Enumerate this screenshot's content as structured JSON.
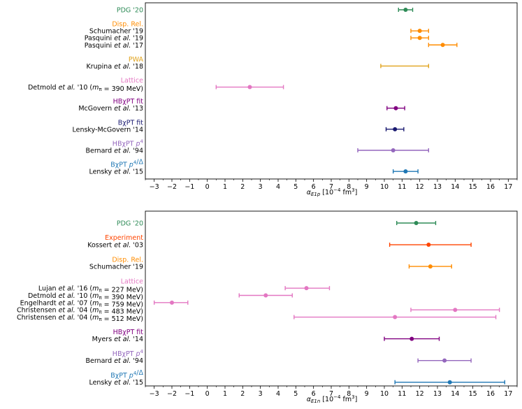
{
  "chart_data": [
    {
      "type": "errorbar",
      "xlabel": "α_E1p [10⁻⁴ fm³]",
      "xlabel_main": "α",
      "xlabel_sub": "E1p",
      "xlabel_unit": " [10",
      "xlabel_exp": "−4",
      "xlabel_tail": " fm",
      "xlabel_cube": "3",
      "xlabel_close": "]",
      "xlim": [
        -3.5,
        17.5
      ],
      "ticks": [
        -3,
        -2,
        -1,
        0,
        1,
        2,
        3,
        4,
        5,
        6,
        7,
        8,
        9,
        10,
        11,
        12,
        13,
        14,
        15,
        16,
        17
      ],
      "tick_labels": [
        "−3",
        "−2",
        "−1",
        "0",
        "1",
        "2",
        "3",
        "4",
        "5",
        "6",
        "7",
        "8",
        "9",
        "10",
        "11",
        "12",
        "13",
        "14",
        "15",
        "16",
        "17"
      ],
      "groups": [
        {
          "name": "PDG '20",
          "color": "#2e8b57",
          "entries": [
            {
              "label": "",
              "value": 11.2,
              "low": 10.8,
              "high": 11.6,
              "marker": true
            }
          ]
        },
        {
          "name": "Disp. Rel.",
          "color": "#ff8c00",
          "entries": [
            {
              "label": "Schumacher '19",
              "value": 12.0,
              "low": 11.5,
              "high": 12.5,
              "marker": true
            },
            {
              "label": "Pasquini et al. '19",
              "value": 12.0,
              "low": 11.5,
              "high": 12.5,
              "marker": true
            },
            {
              "label": "Pasquini et al. '17",
              "value": 13.3,
              "low": 12.5,
              "high": 14.1,
              "marker": true
            }
          ]
        },
        {
          "name": "PWA",
          "color": "#e0a21b",
          "entries": [
            {
              "label": "Krupina et al. '18",
              "value": 11.15,
              "low": 9.8,
              "high": 12.5,
              "marker": false
            }
          ]
        },
        {
          "name": "Lattice",
          "color": "#e377c2",
          "entries": [
            {
              "label": "Detmold et al. '10 (m_π = 390 MeV)",
              "value": 2.4,
              "low": 0.5,
              "high": 4.3,
              "marker": true
            }
          ]
        },
        {
          "name": "HBχPT fit",
          "color": "#800080",
          "entries": [
            {
              "label": "McGovern et al. '13",
              "value": 10.65,
              "low": 10.15,
              "high": 11.15,
              "marker": true
            }
          ]
        },
        {
          "name": "BχPT fit",
          "color": "#191970",
          "entries": [
            {
              "label": "Lensky-McGovern '14",
              "value": 10.6,
              "low": 10.1,
              "high": 11.1,
              "marker": true
            }
          ]
        },
        {
          "name": "HBχPT p⁴",
          "color": "#9467bd",
          "entries": [
            {
              "label": "Bernard et al. '94",
              "value": 10.5,
              "low": 8.5,
              "high": 12.5,
              "marker": true
            }
          ]
        },
        {
          "name": "BχPT p⁴/Δ",
          "color": "#1f77b4",
          "entries": [
            {
              "label": "Lensky et al. '15",
              "value": 11.2,
              "low": 10.5,
              "high": 11.9,
              "marker": true
            }
          ]
        }
      ]
    },
    {
      "type": "errorbar",
      "xlabel": "α_E1n [10⁻⁴ fm³]",
      "xlabel_main": "α",
      "xlabel_sub": "E1n",
      "xlabel_unit": " [10",
      "xlabel_exp": "−4",
      "xlabel_tail": " fm",
      "xlabel_cube": "3",
      "xlabel_close": "]",
      "xlim": [
        -3.5,
        17.5
      ],
      "ticks": [
        -3,
        -2,
        -1,
        0,
        1,
        2,
        3,
        4,
        5,
        6,
        7,
        8,
        9,
        10,
        11,
        12,
        13,
        14,
        15,
        16,
        17
      ],
      "tick_labels": [
        "−3",
        "−2",
        "−1",
        "0",
        "1",
        "2",
        "3",
        "4",
        "5",
        "6",
        "7",
        "8",
        "9",
        "10",
        "11",
        "12",
        "13",
        "14",
        "15",
        "16",
        "17"
      ],
      "groups": [
        {
          "name": "PDG '20",
          "color": "#2e8b57",
          "entries": [
            {
              "label": "",
              "value": 11.8,
              "low": 10.7,
              "high": 12.9,
              "marker": true
            }
          ]
        },
        {
          "name": "Experiment",
          "color": "#ff4500",
          "entries": [
            {
              "label": "Kossert et al. '03",
              "value": 12.5,
              "low": 10.3,
              "high": 14.9,
              "marker": true
            }
          ]
        },
        {
          "name": "Disp. Rel.",
          "color": "#ff8c00",
          "entries": [
            {
              "label": "Schumacher '19",
              "value": 12.6,
              "low": 11.4,
              "high": 13.8,
              "marker": true
            }
          ]
        },
        {
          "name": "Lattice",
          "color": "#e377c2",
          "entries": [
            {
              "label": "Lujan et al. '16 (m_π = 227 MeV)",
              "value": 5.6,
              "low": 4.4,
              "high": 6.9,
              "marker": true
            },
            {
              "label": "Detmold et al. '10 (m_π = 390 MeV)",
              "value": 3.3,
              "low": 1.8,
              "high": 4.8,
              "marker": true
            },
            {
              "label": "Engelhardt et al. '07 (m_π = 759 MeV)",
              "value": -2.0,
              "low": -3.0,
              "high": -1.1,
              "marker": true
            },
            {
              "label": "Christensen et al. '04 (m_π = 483 MeV)",
              "value": 14.0,
              "low": 11.5,
              "high": 16.5,
              "marker": true
            },
            {
              "label": "Christensen et al. '04 (m_π = 512 MeV)",
              "value": 10.6,
              "low": 4.9,
              "high": 16.3,
              "marker": true
            }
          ]
        },
        {
          "name": "HBχPT fit",
          "color": "#800080",
          "entries": [
            {
              "label": "Myers et al. '14",
              "value": 11.55,
              "low": 10.0,
              "high": 13.1,
              "marker": true
            }
          ]
        },
        {
          "name": "HBχPT p⁴",
          "color": "#9467bd",
          "entries": [
            {
              "label": "Bernard et al. '94",
              "value": 13.4,
              "low": 11.9,
              "high": 14.9,
              "marker": true
            }
          ]
        },
        {
          "name": "BχPT p⁴/Δ",
          "color": "#1f77b4",
          "entries": [
            {
              "label": "Lensky et al. '15",
              "value": 13.7,
              "low": 10.6,
              "high": 16.8,
              "marker": true
            }
          ]
        }
      ]
    }
  ]
}
